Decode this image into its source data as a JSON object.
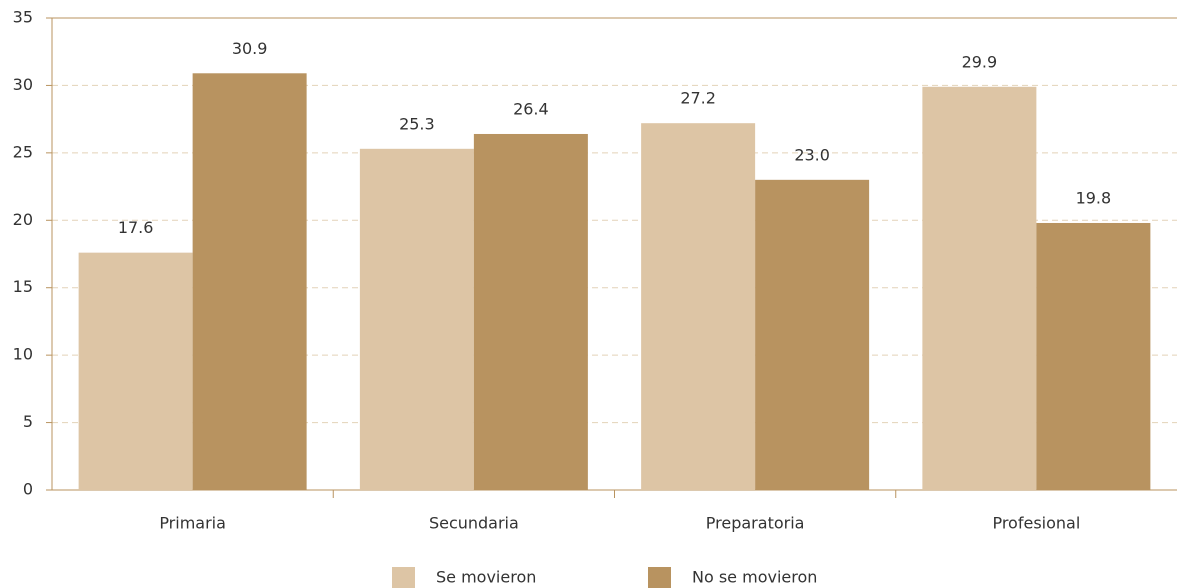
{
  "chart_data": {
    "type": "bar",
    "categories": [
      "Primaria",
      "Secundaria",
      "Preparatoria",
      "Profesional"
    ],
    "series": [
      {
        "name": "Se movieron",
        "color": "#ddc5a5",
        "values": [
          17.6,
          25.3,
          27.2,
          29.9
        ],
        "value_labels": [
          "17.6",
          "25.3",
          "27.2",
          "29.9"
        ]
      },
      {
        "name": "No se movieron",
        "color": "#b89360",
        "values": [
          30.9,
          26.4,
          23.0,
          19.8
        ],
        "value_labels": [
          "30.9",
          "26.4",
          "23.0",
          "19.8"
        ]
      }
    ],
    "ylim": [
      0,
      35
    ],
    "yticks": [
      0,
      5,
      10,
      15,
      20,
      25,
      30,
      35
    ],
    "grid": true,
    "legend": "bottom"
  }
}
